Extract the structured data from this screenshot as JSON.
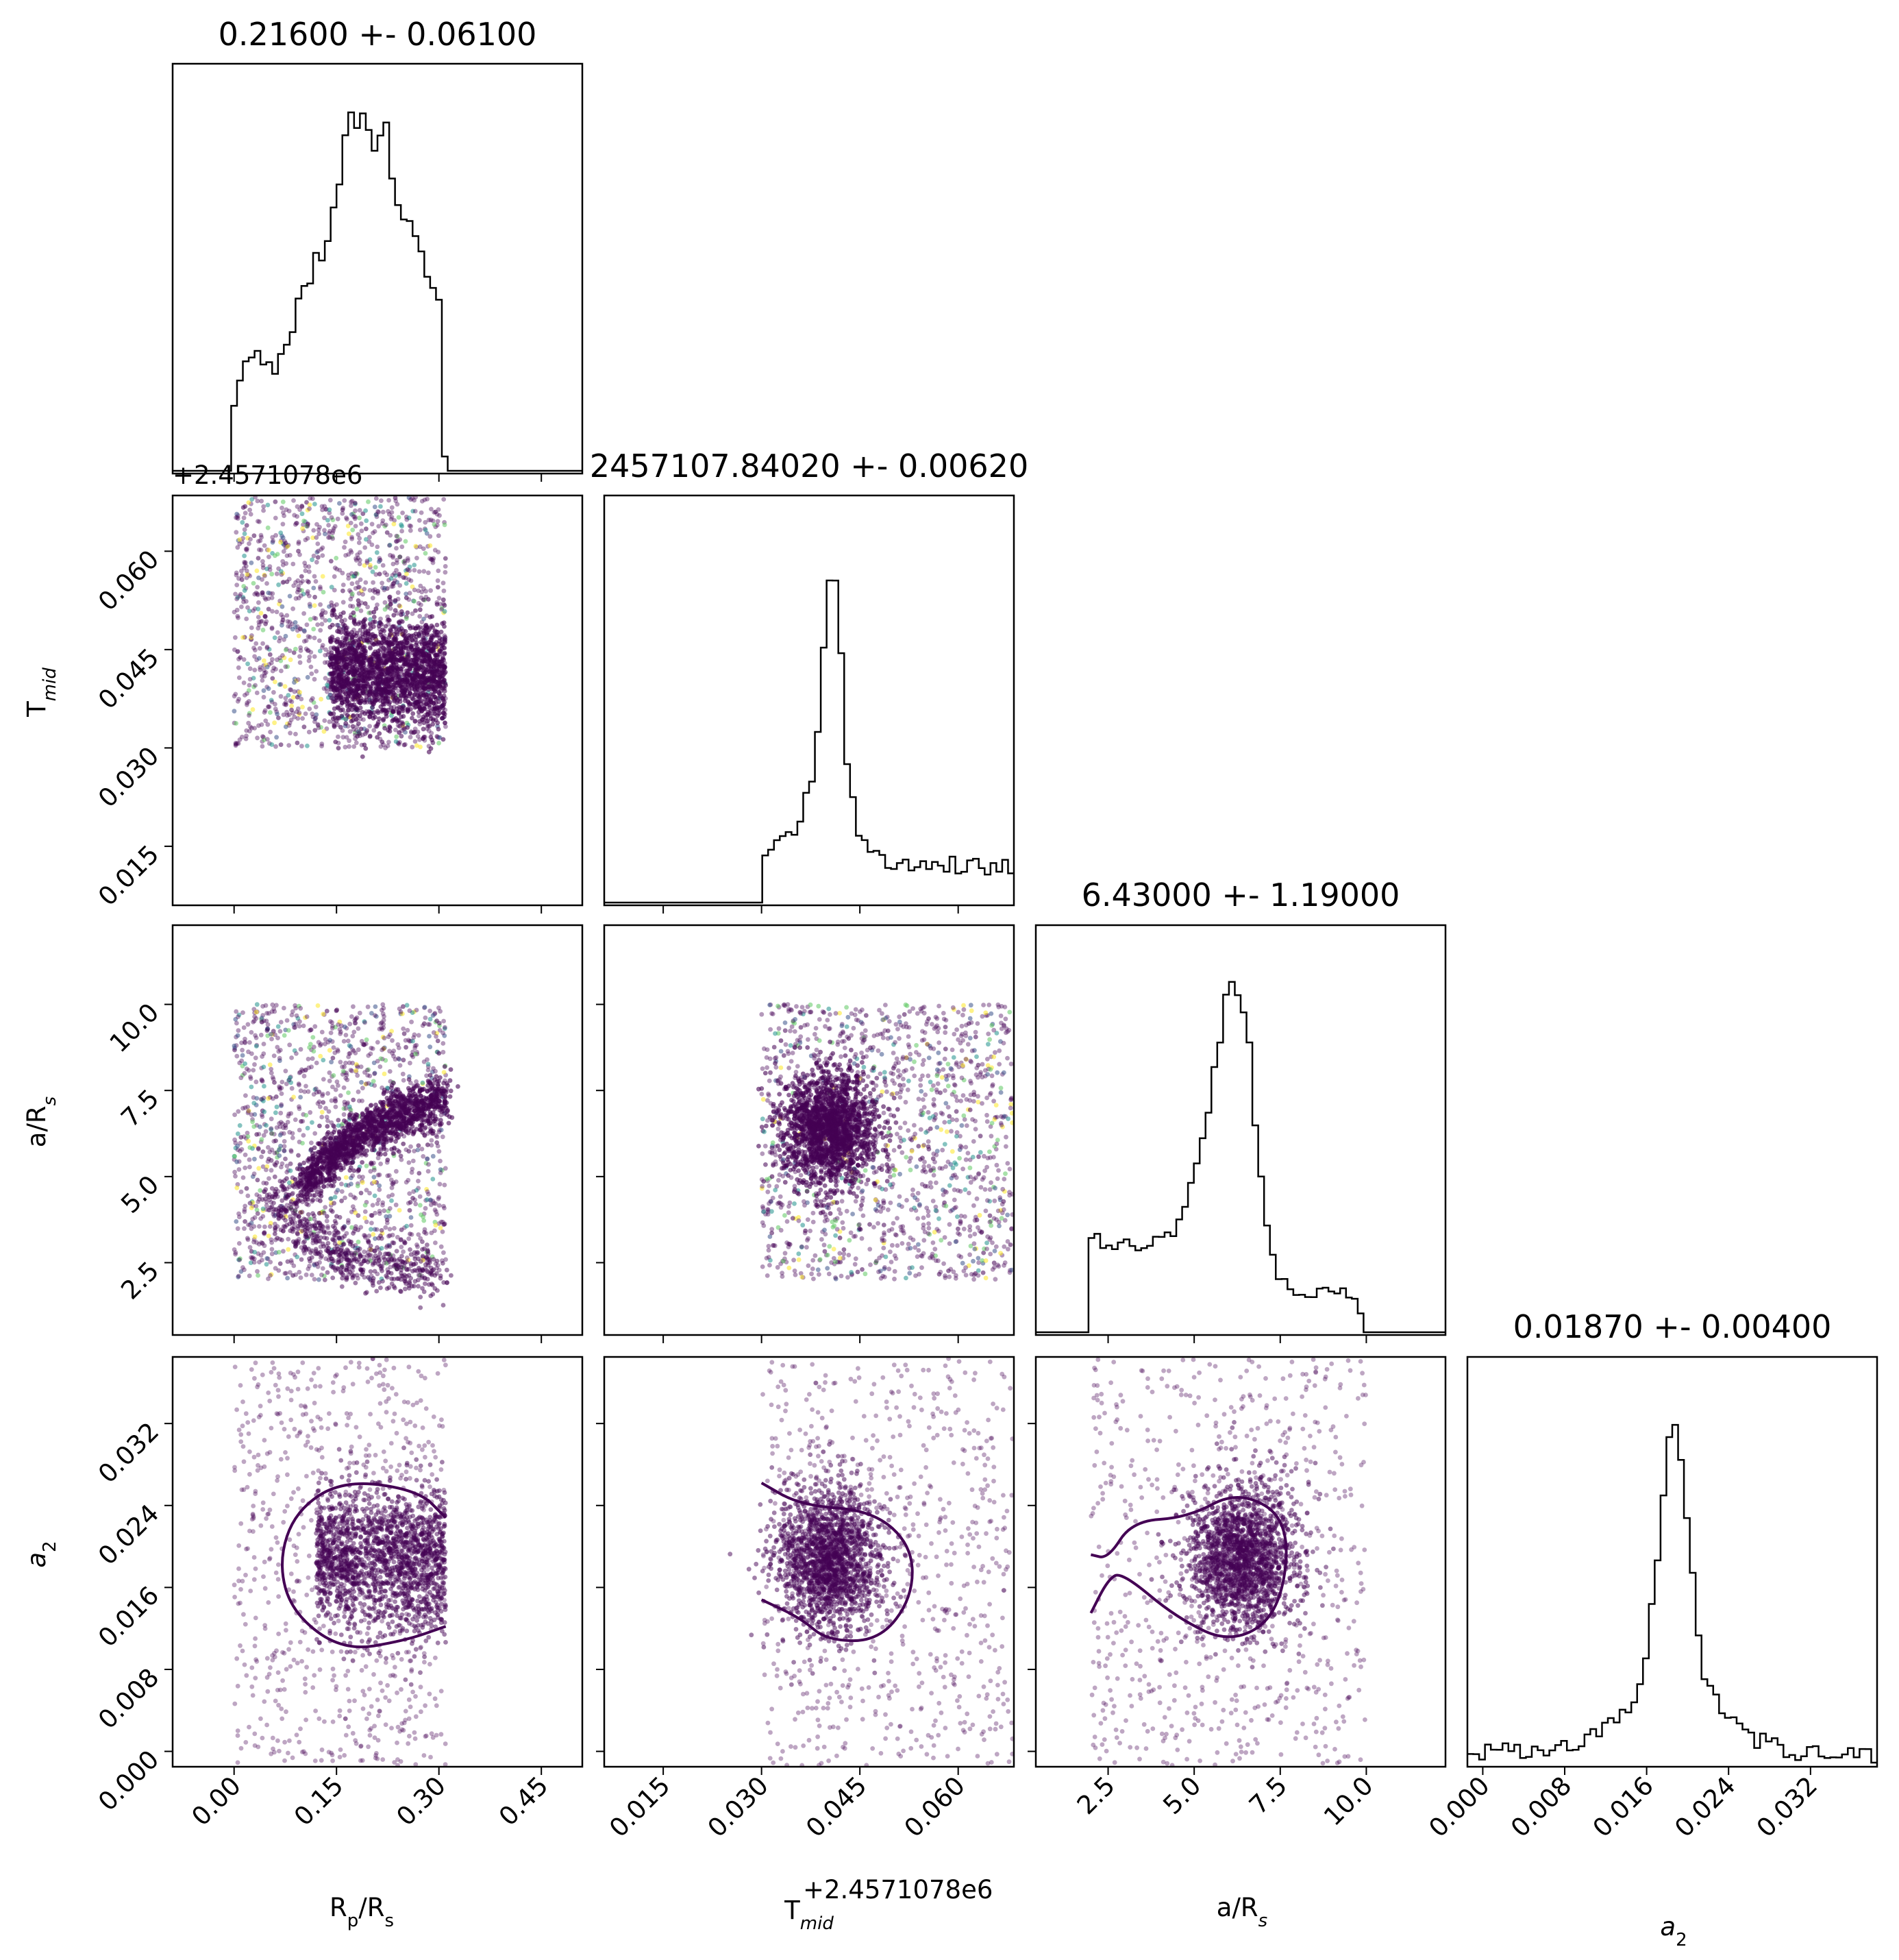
{
  "figure": {
    "type": "corner-plot",
    "parameters": [
      "Rp/Rs",
      "Tmid",
      "a/Rs",
      "a2"
    ],
    "axis_labels": {
      "Rp/Rs": [
        "R",
        "p",
        "/R",
        "s"
      ],
      "Tmid": [
        "T",
        "mid",
        ""
      ],
      "a/Rs": [
        "a/R",
        "s",
        ""
      ],
      "a2": [
        "a",
        "2",
        ""
      ]
    },
    "offset_label": "+2.4571078e6",
    "titles": [
      "0.21600 +- 0.06100",
      "2457107.84020 +- 0.00620",
      "6.43000 +- 1.19000",
      "0.01870 +- 0.00400"
    ],
    "colors": {
      "hist": "#000000",
      "points": "#440154",
      "contour": "#440154",
      "palette": [
        "#440154",
        "#3b528b",
        "#21918c",
        "#5ec962",
        "#fde725"
      ]
    }
  },
  "chart_data": [
    {
      "type": "histogram",
      "parameter": "Rp/Rs",
      "title": "0.21600 +- 0.06100",
      "xlim": [
        -0.09,
        0.51
      ],
      "ticks": [
        0.0,
        0.15,
        0.3,
        0.45
      ],
      "tick_labels": [
        "0.00",
        "0.15",
        "0.30",
        "0.45"
      ],
      "xlabel": "Rp/Rs",
      "support": [
        0.0,
        0.31
      ],
      "x": [
        0.0,
        0.01,
        0.02,
        0.03,
        0.04,
        0.05,
        0.06,
        0.07,
        0.08,
        0.09,
        0.1,
        0.11,
        0.12,
        0.13,
        0.14,
        0.15,
        0.16,
        0.17,
        0.18,
        0.19,
        0.2,
        0.21,
        0.22,
        0.23,
        0.24,
        0.25,
        0.26,
        0.27,
        0.28,
        0.29,
        0.3,
        0.31
      ],
      "density": [
        0.2,
        0.28,
        0.3,
        0.3,
        0.31,
        0.3,
        0.26,
        0.32,
        0.33,
        0.45,
        0.46,
        0.52,
        0.58,
        0.57,
        0.65,
        0.72,
        0.86,
        0.95,
        0.92,
        0.98,
        0.9,
        0.86,
        0.98,
        0.82,
        0.74,
        0.65,
        0.7,
        0.63,
        0.55,
        0.5,
        0.44,
        0.0
      ]
    },
    {
      "type": "histogram",
      "parameter": "Tmid",
      "title": "2457107.84020 +- 0.00620",
      "offset": "+2.4571078e6",
      "xlim": [
        0.006,
        0.0685
      ],
      "ticks": [
        0.015,
        0.03,
        0.045,
        0.06
      ],
      "tick_labels": [
        "0.015",
        "0.030",
        "0.045",
        "0.060"
      ],
      "xlabel": "Tmid",
      "x": [
        0.03,
        0.032,
        0.034,
        0.036,
        0.038,
        0.039,
        0.04,
        0.041,
        0.042,
        0.043,
        0.044,
        0.045,
        0.047,
        0.05,
        0.055,
        0.06,
        0.065,
        0.0685
      ],
      "density": [
        0.13,
        0.16,
        0.17,
        0.24,
        0.34,
        0.58,
        0.83,
        0.93,
        0.7,
        0.4,
        0.26,
        0.17,
        0.13,
        0.11,
        0.1,
        0.1,
        0.1,
        0.1
      ]
    },
    {
      "type": "histogram",
      "parameter": "a/Rs",
      "title": "6.43000 +- 1.19000",
      "xlim": [
        0.4,
        12.3
      ],
      "ticks": [
        2.5,
        5.0,
        7.5,
        10.0
      ],
      "tick_labels": [
        "2.5",
        "5.0",
        "7.5",
        "10.0"
      ],
      "xlabel": "a/Rs",
      "x": [
        1.9,
        2.5,
        3.0,
        3.5,
        4.0,
        4.4,
        4.8,
        5.2,
        5.5,
        5.8,
        6.0,
        6.2,
        6.4,
        6.6,
        6.8,
        7.1,
        7.4,
        7.8,
        8.3,
        8.8,
        9.2,
        9.6,
        9.9,
        10.0
      ],
      "density": [
        0.25,
        0.24,
        0.23,
        0.22,
        0.24,
        0.28,
        0.35,
        0.49,
        0.65,
        0.82,
        0.95,
        0.93,
        0.91,
        0.8,
        0.55,
        0.3,
        0.14,
        0.11,
        0.1,
        0.1,
        0.13,
        0.1,
        0.05,
        0.0
      ]
    },
    {
      "type": "histogram",
      "parameter": "a2",
      "title": "0.01870 +- 0.00400",
      "xlim": [
        -0.0015,
        0.0385
      ],
      "ticks": [
        0.0,
        0.008,
        0.016,
        0.024,
        0.032
      ],
      "tick_labels": [
        "0.000",
        "0.008",
        "0.016",
        "0.024",
        "0.032"
      ],
      "xlabel": "a2",
      "x": [
        -0.0015,
        0.0,
        0.004,
        0.008,
        0.01,
        0.012,
        0.014,
        0.015,
        0.016,
        0.017,
        0.018,
        0.019,
        0.02,
        0.021,
        0.022,
        0.024,
        0.026,
        0.028,
        0.03,
        0.034,
        0.0385
      ],
      "density": [
        0.02,
        0.03,
        0.04,
        0.05,
        0.07,
        0.09,
        0.13,
        0.19,
        0.3,
        0.55,
        0.85,
        0.92,
        0.65,
        0.35,
        0.2,
        0.12,
        0.08,
        0.05,
        0.03,
        0.02,
        0.02
      ]
    },
    {
      "type": "scatter",
      "x_param": "Rp/Rs",
      "y_param": "Tmid",
      "ylim": [
        0.0085,
        0.0685
      ],
      "yticks": [
        0.015,
        0.03,
        0.045,
        0.06
      ],
      "ytick_labels": [
        "0.015",
        "0.030",
        "0.045",
        "0.060"
      ],
      "ylabel": "Tmid",
      "uniform_box": {
        "x": [
          0.0,
          0.31
        ],
        "y": [
          0.03,
          0.0685
        ]
      },
      "cluster": {
        "x": [
          0.14,
          0.31
        ],
        "y_center": 0.0415,
        "y_spread": 0.004
      }
    },
    {
      "type": "scatter",
      "x_param": "Rp/Rs",
      "y_param": "a/Rs",
      "ylim": [
        0.4,
        12.3
      ],
      "yticks": [
        2.5,
        5.0,
        7.5,
        10.0
      ],
      "ytick_labels": [
        "2.5",
        "5.0",
        "7.5",
        "10.0"
      ],
      "ylabel": "a/Rs",
      "uniform_box": {
        "x": [
          0.0,
          0.31
        ],
        "y": [
          2.0,
          10.0
        ]
      },
      "ridge": [
        [
          0.1,
          4.8
        ],
        [
          0.15,
          5.7
        ],
        [
          0.2,
          6.4
        ],
        [
          0.25,
          6.9
        ],
        [
          0.31,
          7.3
        ]
      ],
      "arc": [
        [
          0.05,
          4.6
        ],
        [
          0.1,
          3.5
        ],
        [
          0.16,
          2.7
        ],
        [
          0.24,
          2.3
        ],
        [
          0.31,
          2.2
        ]
      ]
    },
    {
      "type": "scatter",
      "x_param": "Tmid",
      "y_param": "a/Rs",
      "uniform_box": {
        "x": [
          0.03,
          0.0685
        ],
        "y": [
          2.0,
          10.0
        ]
      },
      "cluster": {
        "x_center": 0.0405,
        "y_center": 6.4,
        "x_spread": 0.0035,
        "y_spread": 0.8
      }
    },
    {
      "type": "scatter",
      "x_param": "Rp/Rs",
      "y_param": "a2",
      "ylim": [
        -0.0015,
        0.0385
      ],
      "yticks": [
        0.0,
        0.008,
        0.016,
        0.024,
        0.032
      ],
      "ytick_labels": [
        "0.000",
        "0.008",
        "0.016",
        "0.024",
        "0.032"
      ],
      "ylabel": "a2",
      "cluster": {
        "x": [
          0.12,
          0.31
        ],
        "y_center": 0.0188,
        "y_spread": 0.0035
      },
      "contour": [
        [
          0.31,
          0.0228
        ],
        [
          0.27,
          0.0255
        ],
        [
          0.16,
          0.0265
        ],
        [
          0.09,
          0.0235
        ],
        [
          0.065,
          0.0185
        ],
        [
          0.085,
          0.0135
        ],
        [
          0.16,
          0.0098
        ],
        [
          0.25,
          0.0108
        ],
        [
          0.31,
          0.0122
        ]
      ]
    },
    {
      "type": "scatter",
      "x_param": "Tmid",
      "y_param": "a2",
      "cluster": {
        "x_center": 0.0405,
        "y_center": 0.0188,
        "x_spread": 0.004,
        "y_spread": 0.0035
      },
      "contour": [
        [
          0.03,
          0.0262
        ],
        [
          0.036,
          0.024
        ],
        [
          0.047,
          0.0235
        ],
        [
          0.053,
          0.02
        ],
        [
          0.053,
          0.015
        ],
        [
          0.048,
          0.0108
        ],
        [
          0.04,
          0.0108
        ],
        [
          0.036,
          0.013
        ],
        [
          0.03,
          0.0148
        ]
      ]
    },
    {
      "type": "scatter",
      "x_param": "a/Rs",
      "y_param": "a2",
      "cluster": {
        "x_center": 6.4,
        "y_center": 0.0188,
        "x_spread": 0.8,
        "y_spread": 0.0035
      },
      "contour": [
        [
          2.0,
          0.0192
        ],
        [
          2.5,
          0.0188
        ],
        [
          3.2,
          0.0225
        ],
        [
          4.8,
          0.0228
        ],
        [
          6.3,
          0.0255
        ],
        [
          7.8,
          0.0225
        ],
        [
          7.5,
          0.0135
        ],
        [
          6.1,
          0.0105
        ],
        [
          4.5,
          0.013
        ],
        [
          2.9,
          0.0175
        ],
        [
          2.5,
          0.0168
        ],
        [
          2.0,
          0.0135
        ]
      ]
    }
  ]
}
